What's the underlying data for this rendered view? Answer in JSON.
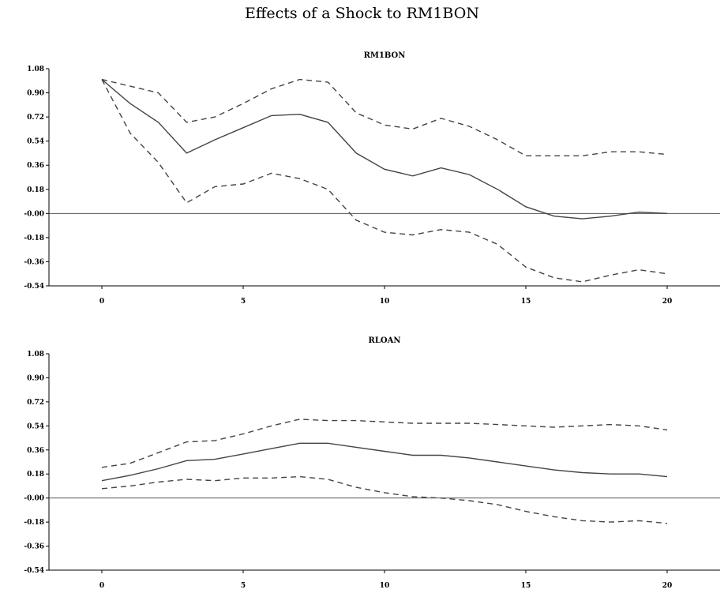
{
  "title": "Effects of a Shock to RM1BON",
  "chart_data": [
    {
      "type": "line",
      "title": "RM1BON",
      "xlabel": "",
      "ylabel": "",
      "x": [
        0,
        1,
        2,
        3,
        4,
        5,
        6,
        7,
        8,
        9,
        10,
        11,
        12,
        13,
        14,
        15,
        16,
        17,
        18,
        19,
        20
      ],
      "xlim": [
        0,
        20
      ],
      "xticks": [
        0,
        5,
        10,
        15,
        20
      ],
      "ylim": [
        -0.54,
        1.08
      ],
      "yticks": [
        "1.08",
        "0.90",
        "0.72",
        "0.54",
        "0.36",
        "0.18",
        "-0.00",
        "-0.18",
        "-0.36",
        "-0.54"
      ],
      "zero_line": true,
      "series": [
        {
          "style": "solid",
          "values": [
            1.0,
            0.82,
            0.68,
            0.45,
            0.55,
            0.64,
            0.73,
            0.74,
            0.68,
            0.45,
            0.33,
            0.28,
            0.34,
            0.29,
            0.18,
            0.05,
            -0.02,
            -0.04,
            -0.02,
            0.01,
            0.0
          ]
        },
        {
          "style": "dashed",
          "values": [
            1.0,
            0.95,
            0.9,
            0.68,
            0.72,
            0.82,
            0.93,
            1.0,
            0.98,
            0.75,
            0.66,
            0.63,
            0.71,
            0.65,
            0.55,
            0.43,
            0.43,
            0.43,
            0.46,
            0.46,
            0.44
          ]
        },
        {
          "style": "dashed",
          "values": [
            1.0,
            0.6,
            0.38,
            0.08,
            0.2,
            0.22,
            0.3,
            0.26,
            0.18,
            -0.05,
            -0.14,
            -0.16,
            -0.12,
            -0.14,
            -0.23,
            -0.4,
            -0.48,
            -0.51,
            -0.46,
            -0.42,
            -0.45
          ]
        }
      ]
    },
    {
      "type": "line",
      "title": "RLOAN",
      "xlabel": "",
      "ylabel": "",
      "x": [
        0,
        1,
        2,
        3,
        4,
        5,
        6,
        7,
        8,
        9,
        10,
        11,
        12,
        13,
        14,
        15,
        16,
        17,
        18,
        19,
        20
      ],
      "xlim": [
        0,
        20
      ],
      "xticks": [
        0,
        5,
        10,
        15,
        20
      ],
      "ylim": [
        -0.54,
        1.08
      ],
      "yticks": [
        "1.08",
        "0.90",
        "0.72",
        "0.54",
        "0.36",
        "0.18",
        "-0.00",
        "-0.18",
        "-0.36",
        "-0.54"
      ],
      "zero_line": true,
      "series": [
        {
          "style": "solid",
          "values": [
            0.13,
            0.17,
            0.22,
            0.28,
            0.29,
            0.33,
            0.37,
            0.41,
            0.41,
            0.38,
            0.35,
            0.32,
            0.32,
            0.3,
            0.27,
            0.24,
            0.21,
            0.19,
            0.18,
            0.18,
            0.16
          ]
        },
        {
          "style": "dashed",
          "values": [
            0.23,
            0.26,
            0.34,
            0.42,
            0.43,
            0.48,
            0.54,
            0.59,
            0.58,
            0.58,
            0.57,
            0.56,
            0.56,
            0.56,
            0.55,
            0.54,
            0.53,
            0.54,
            0.55,
            0.54,
            0.51
          ]
        },
        {
          "style": "dashed",
          "values": [
            0.07,
            0.09,
            0.12,
            0.14,
            0.13,
            0.15,
            0.15,
            0.16,
            0.14,
            0.08,
            0.04,
            0.01,
            -0.0,
            -0.02,
            -0.05,
            -0.1,
            -0.14,
            -0.17,
            -0.18,
            -0.17,
            -0.19
          ]
        }
      ]
    }
  ]
}
